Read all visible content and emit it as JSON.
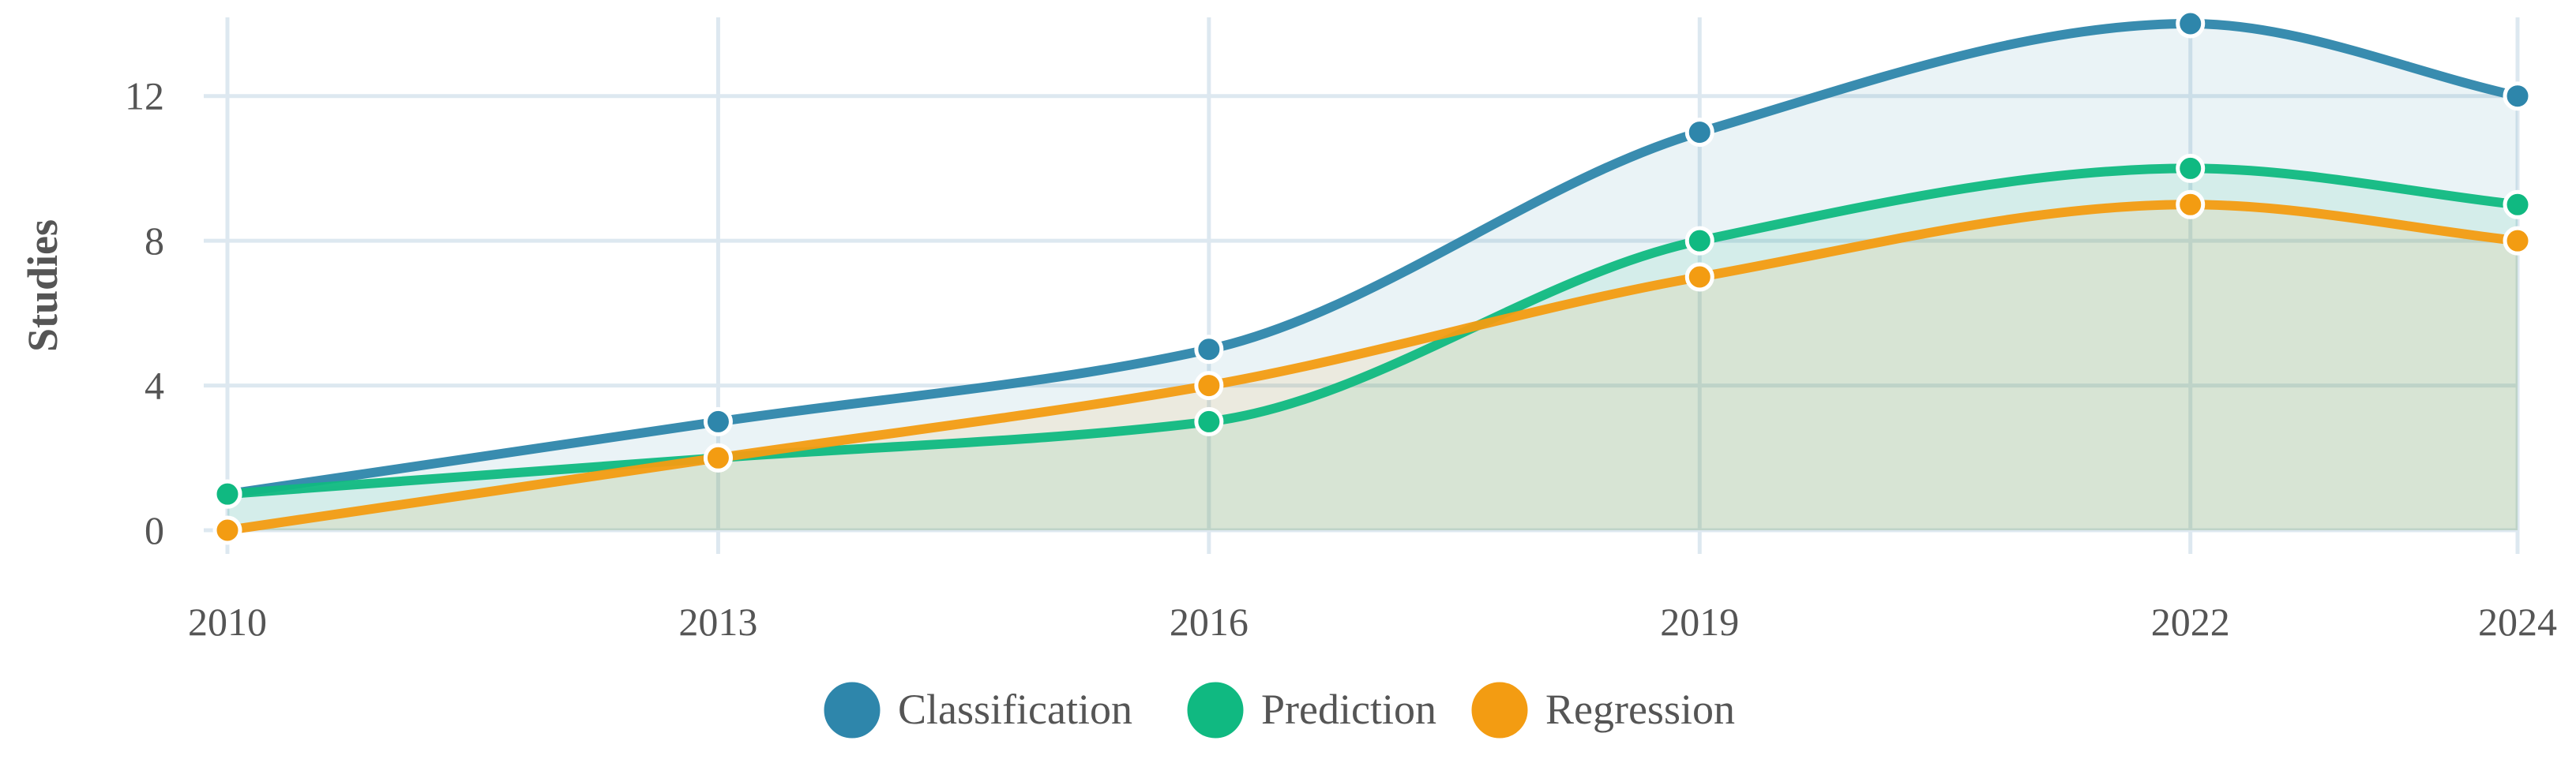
{
  "chart_data": {
    "type": "area",
    "title": "",
    "xlabel": "",
    "ylabel": "Studies",
    "x": [
      "2010",
      "2013",
      "2016",
      "2019",
      "2022",
      "2024"
    ],
    "ylim": [
      0,
      14
    ],
    "yticks": [
      0,
      4,
      8,
      12
    ],
    "grid": true,
    "legend_position": "bottom",
    "series": [
      {
        "name": "Classification",
        "values": [
          1,
          3,
          5,
          11,
          14,
          12
        ],
        "color": "#2e86ab"
      },
      {
        "name": "Prediction",
        "values": [
          1,
          2,
          3,
          8,
          10,
          9
        ],
        "color": "#10b981"
      },
      {
        "name": "Regression",
        "values": [
          0,
          2,
          4,
          7,
          9,
          8
        ],
        "color": "#f39c12"
      }
    ]
  }
}
